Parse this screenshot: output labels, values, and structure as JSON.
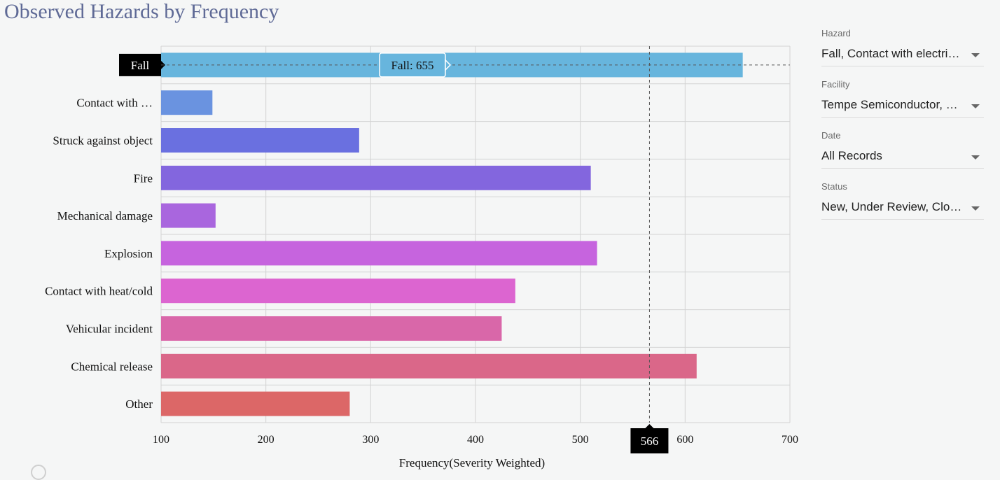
{
  "page": {
    "title": "Observed Hazards by Frequency"
  },
  "filters": [
    {
      "label": "Hazard",
      "value": "Fall, Contact with electri…"
    },
    {
      "label": "Facility",
      "value": "Tempe Semiconductor, …"
    },
    {
      "label": "Date",
      "value": "All Records"
    },
    {
      "label": "Status",
      "value": "New, Under Review, Clos…"
    }
  ],
  "chart_data": {
    "type": "bar",
    "orientation": "horizontal",
    "categories": [
      "Fall",
      "Contact with …",
      "Struck against object",
      "Fire",
      "Mechanical damage",
      "Explosion",
      "Contact with heat/cold",
      "Vehicular incident",
      "Chemical release",
      "Other"
    ],
    "values": [
      655,
      149,
      289,
      510,
      152,
      516,
      438,
      425,
      611,
      280
    ],
    "colors": [
      "#67b5dd",
      "#6a93e0",
      "#6a70e0",
      "#8366de",
      "#a966de",
      "#c664de",
      "#dc65d0",
      "#d967a9",
      "#da6789",
      "#dc6767"
    ],
    "xlabel": "Frequency(Severity Weighted)",
    "ylabel": "",
    "xlim": [
      100,
      700
    ],
    "xticks": [
      100,
      200,
      300,
      400,
      500,
      600,
      700
    ],
    "grid": true,
    "highlight": {
      "category": "Fall",
      "tooltip": "Fall: 655"
    },
    "cursor": {
      "value": 566,
      "label": "566"
    }
  }
}
